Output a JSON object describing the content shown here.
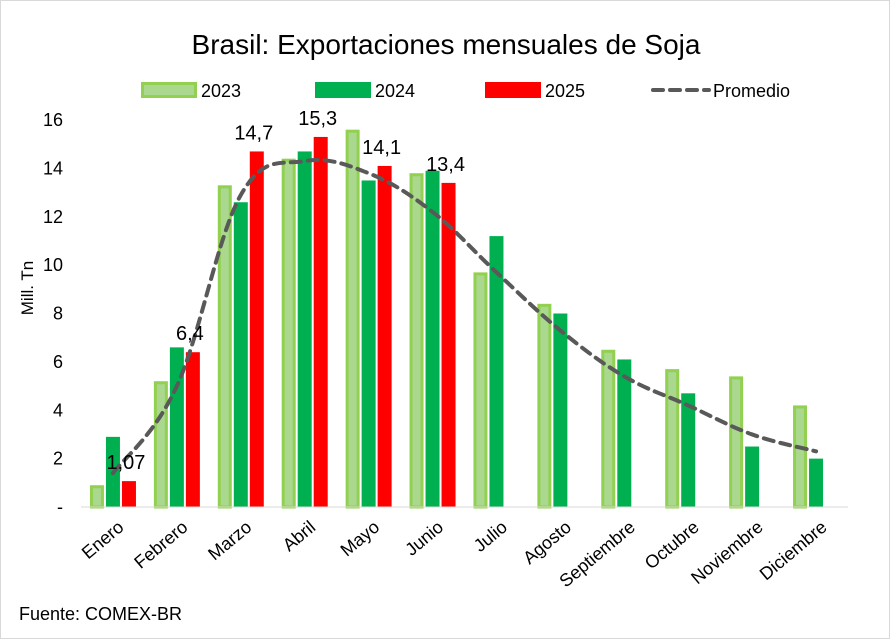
{
  "chart_data": {
    "type": "bar",
    "title": "Brasil: Exportaciones mensuales de Soja",
    "ylabel": "Mill. Tn",
    "xlabel": "",
    "ylim": [
      0,
      16
    ],
    "yticks": [
      {
        "value": 0,
        "label": "-"
      },
      {
        "value": 2,
        "label": "2"
      },
      {
        "value": 4,
        "label": "4"
      },
      {
        "value": 6,
        "label": "6"
      },
      {
        "value": 8,
        "label": "8"
      },
      {
        "value": 10,
        "label": "10"
      },
      {
        "value": 12,
        "label": "12"
      },
      {
        "value": 14,
        "label": "14"
      },
      {
        "value": 16,
        "label": "16"
      }
    ],
    "categories": [
      "Enero",
      "Febrero",
      "Marzo",
      "Abril",
      "Mayo",
      "Junio",
      "Julio",
      "Agosto",
      "Septiembre",
      "Octubre",
      "Noviembre",
      "Diciembre"
    ],
    "series": [
      {
        "name": "2023",
        "type": "bar",
        "color": "#92d050",
        "values": [
          0.9,
          5.2,
          13.3,
          14.4,
          15.6,
          13.8,
          9.7,
          8.4,
          6.5,
          5.7,
          5.4,
          4.2
        ]
      },
      {
        "name": "2024",
        "type": "bar",
        "color": "#00b050",
        "values": [
          2.9,
          6.6,
          12.6,
          14.7,
          13.5,
          13.9,
          11.2,
          8.0,
          6.1,
          4.7,
          2.5,
          2.0
        ]
      },
      {
        "name": "2025",
        "type": "bar",
        "color": "#ff0000",
        "values": [
          1.07,
          6.4,
          14.7,
          15.3,
          14.1,
          13.4,
          null,
          null,
          null,
          null,
          null,
          null
        ]
      },
      {
        "name": "Promedio",
        "type": "line",
        "style": "dashed",
        "color": "#595959",
        "values": [
          1.4,
          5.0,
          12.9,
          14.3,
          13.8,
          12.2,
          9.7,
          7.3,
          5.4,
          4.2,
          3.0,
          2.3
        ]
      }
    ],
    "data_labels": [
      {
        "series": "2025",
        "category": "Enero",
        "text": "1,07"
      },
      {
        "series": "2025",
        "category": "Febrero",
        "text": "6,4"
      },
      {
        "series": "2025",
        "category": "Marzo",
        "text": "14,7"
      },
      {
        "series": "2025",
        "category": "Abril",
        "text": "15,3"
      },
      {
        "series": "2025",
        "category": "Mayo",
        "text": "14,1"
      },
      {
        "series": "2025",
        "category": "Junio",
        "text": "13,4"
      }
    ],
    "legend": [
      "2023",
      "2024",
      "2025",
      "Promedio"
    ],
    "legend_position": "top",
    "grid": false
  },
  "source": "Fuente: COMEX-BR"
}
